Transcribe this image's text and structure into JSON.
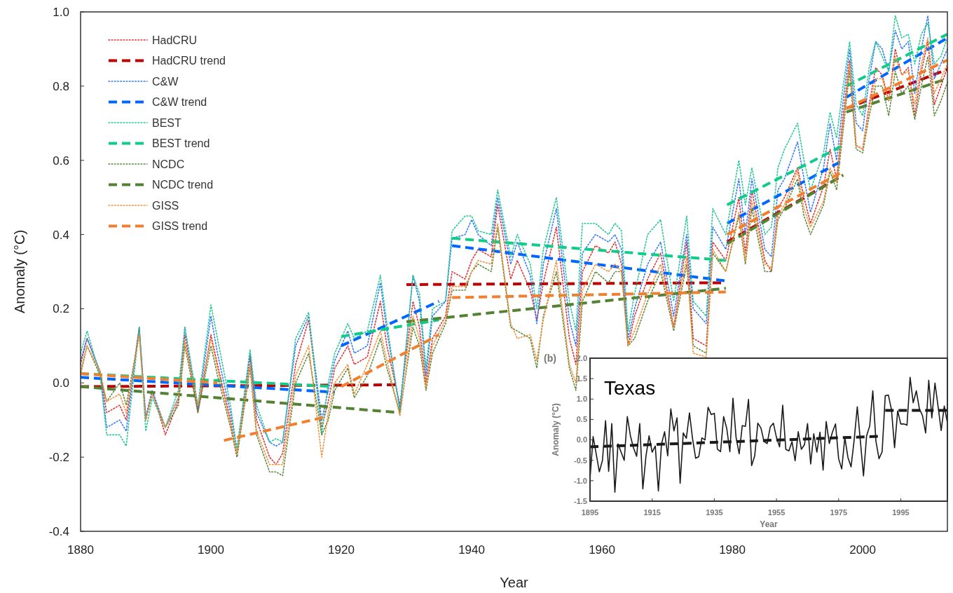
{
  "chart_data": [
    {
      "type": "line",
      "xlabel": "Year",
      "ylabel": "Anomaly (°C)",
      "xlim": [
        1880,
        2013
      ],
      "ylim": [
        -0.4,
        1.0
      ],
      "xticks": [
        1880,
        1900,
        1920,
        1940,
        1960,
        1980,
        2000
      ],
      "yticks": [
        -0.4,
        -0.2,
        {
          "value": 0,
          "label": "0.0"
        },
        0.2,
        0.4,
        0.6,
        0.8,
        {
          "value": 1,
          "label": "1.0"
        }
      ],
      "legend": "top left",
      "x": [
        1880,
        1881,
        1883,
        1884,
        1886,
        1887,
        1889,
        1890,
        1891,
        1893,
        1895,
        1896,
        1898,
        1900,
        1901,
        1903,
        1904,
        1906,
        1907,
        1909,
        1910,
        1911,
        1913,
        1915,
        1917,
        1918,
        1919,
        1921,
        1922,
        1924,
        1926,
        1927,
        1929,
        1931,
        1932,
        1933,
        1934,
        1936,
        1937,
        1939,
        1940,
        1941,
        1943,
        1944,
        1946,
        1947,
        1949,
        1950,
        1951,
        1953,
        1955,
        1956,
        1957,
        1959,
        1961,
        1962,
        1963,
        1964,
        1965,
        1967,
        1969,
        1971,
        1973,
        1974,
        1976,
        1977,
        1979,
        1981,
        1982,
        1983,
        1985,
        1986,
        1987,
        1988,
        1990,
        1991,
        1992,
        1994,
        1995,
        1996,
        1997,
        1998,
        1999,
        2000,
        2001,
        2002,
        2003,
        2004,
        2005,
        2006,
        2007,
        2008,
        2009,
        2010,
        2011,
        2012,
        2013
      ],
      "series": [
        {
          "name": "HadCRU",
          "color": "#e03030",
          "line_style": "dotted",
          "values": [
            0.05,
            0.12,
            0.03,
            -0.08,
            -0.06,
            -0.1,
            0.15,
            -0.1,
            -0.02,
            -0.14,
            -0.05,
            0.13,
            -0.08,
            0.13,
            0.05,
            -0.1,
            -0.2,
            0.07,
            -0.1,
            -0.2,
            -0.22,
            -0.19,
            0.05,
            0.17,
            -0.12,
            -0.05,
            0.04,
            0.1,
            0.05,
            0.07,
            0.22,
            0.1,
            -0.06,
            0.22,
            0.15,
            0.0,
            0.12,
            0.18,
            0.3,
            0.28,
            0.33,
            0.36,
            0.34,
            0.48,
            0.28,
            0.33,
            0.25,
            0.17,
            0.27,
            0.42,
            0.12,
            0.05,
            0.3,
            0.37,
            0.35,
            0.38,
            0.32,
            0.1,
            0.18,
            0.28,
            0.35,
            0.15,
            0.38,
            0.12,
            0.1,
            0.38,
            0.33,
            0.5,
            0.35,
            0.52,
            0.33,
            0.3,
            0.47,
            0.5,
            0.58,
            0.5,
            0.43,
            0.53,
            0.63,
            0.55,
            0.72,
            0.87,
            0.64,
            0.63,
            0.75,
            0.85,
            0.83,
            0.76,
            0.9,
            0.83,
            0.85,
            0.72,
            0.84,
            0.92,
            0.75,
            0.8,
            0.85
          ]
        },
        {
          "name": "HadCRU trend",
          "color": "#c00000",
          "line_style": "dashed",
          "x": [
            1880,
            1929,
            1929.5,
            1930,
            1979,
            1979.1,
            1979.2,
            1997,
            1997.3,
            1997.5,
            2013
          ],
          "values": [
            -0.01,
            -0.005,
            null,
            0.265,
            0.27,
            null,
            0.38,
            0.56,
            null,
            0.74,
            0.845
          ]
        },
        {
          "name": "C&W",
          "color": "#3377ff",
          "line_style": "dotted",
          "values": [
            0.06,
            0.12,
            0.03,
            -0.12,
            -0.1,
            -0.13,
            0.15,
            -0.09,
            -0.02,
            -0.12,
            -0.04,
            0.15,
            -0.07,
            0.18,
            0.08,
            -0.08,
            -0.18,
            0.08,
            -0.08,
            -0.16,
            -0.17,
            -0.16,
            0.1,
            0.18,
            -0.1,
            -0.02,
            0.06,
            0.14,
            0.08,
            0.1,
            0.27,
            0.14,
            -0.07,
            0.29,
            0.22,
            0.02,
            0.18,
            0.22,
            0.39,
            0.4,
            0.44,
            0.4,
            0.37,
            0.5,
            0.32,
            0.38,
            0.29,
            0.16,
            0.32,
            0.47,
            0.17,
            0.1,
            0.35,
            0.4,
            0.38,
            0.4,
            0.36,
            0.12,
            0.2,
            0.32,
            0.38,
            0.18,
            0.4,
            0.2,
            0.16,
            0.42,
            0.36,
            0.55,
            0.4,
            0.55,
            0.36,
            0.34,
            0.52,
            0.55,
            0.65,
            0.55,
            0.46,
            0.58,
            0.7,
            0.6,
            0.76,
            0.9,
            0.7,
            0.68,
            0.82,
            0.92,
            0.9,
            0.84,
            0.95,
            0.9,
            0.92,
            0.78,
            0.9,
            0.99,
            0.82,
            0.86,
            0.9
          ]
        },
        {
          "name": "C&W trend",
          "color": "#0066ff",
          "line_style": "dashed",
          "x": [
            1880,
            1919,
            1919.5,
            1920,
            1935,
            1936,
            1937,
            1979,
            1979.1,
            1979.2,
            1997,
            1997.3,
            1997.5,
            2013
          ],
          "values": [
            0.015,
            -0.025,
            null,
            0.1,
            0.22,
            null,
            0.37,
            0.275,
            null,
            0.43,
            0.6,
            null,
            0.77,
            0.93
          ]
        },
        {
          "name": "BEST",
          "color": "#22c995",
          "line_style": "dotted",
          "values": [
            0.08,
            0.14,
            0.02,
            -0.14,
            -0.14,
            -0.17,
            0.15,
            -0.13,
            -0.04,
            -0.12,
            -0.02,
            0.15,
            -0.06,
            0.21,
            0.12,
            -0.06,
            -0.18,
            0.09,
            -0.06,
            -0.16,
            -0.15,
            -0.16,
            0.12,
            0.19,
            -0.14,
            0.0,
            0.08,
            0.16,
            0.12,
            0.14,
            0.29,
            0.16,
            -0.08,
            0.29,
            0.24,
            0.04,
            0.2,
            0.22,
            0.41,
            0.45,
            0.45,
            0.41,
            0.4,
            0.52,
            0.34,
            0.4,
            0.32,
            0.2,
            0.36,
            0.5,
            0.22,
            0.14,
            0.43,
            0.43,
            0.4,
            0.43,
            0.41,
            0.14,
            0.24,
            0.4,
            0.44,
            0.22,
            0.45,
            0.22,
            0.18,
            0.47,
            0.4,
            0.6,
            0.48,
            0.58,
            0.4,
            0.42,
            0.58,
            0.63,
            0.7,
            0.6,
            0.52,
            0.62,
            0.73,
            0.66,
            0.8,
            0.92,
            0.75,
            0.72,
            0.85,
            0.92,
            0.88,
            0.84,
            0.99,
            0.93,
            0.94,
            0.86,
            0.94,
            0.97,
            0.86,
            0.88,
            0.93
          ]
        },
        {
          "name": "BEST trend",
          "color": "#11cc88",
          "line_style": "dashed",
          "x": [
            1880,
            1919,
            1919.5,
            1920,
            1935,
            1936,
            1937,
            1979,
            1979.1,
            1979.2,
            1997,
            1997.3,
            1997.5,
            2013
          ],
          "values": [
            0.025,
            -0.01,
            null,
            0.125,
            0.17,
            null,
            0.39,
            0.33,
            null,
            0.48,
            0.64,
            null,
            0.8,
            0.94
          ]
        },
        {
          "name": "NCDC",
          "color": "#5a8a3a",
          "line_style": "dotted",
          "values": [
            0.03,
            0.1,
            0.02,
            -0.05,
            0.0,
            -0.06,
            0.13,
            -0.1,
            -0.03,
            -0.12,
            -0.06,
            0.1,
            -0.08,
            0.1,
            0.02,
            -0.12,
            -0.2,
            0.04,
            -0.14,
            -0.24,
            -0.24,
            -0.25,
            0.0,
            0.08,
            -0.14,
            -0.1,
            -0.02,
            0.04,
            -0.04,
            0.02,
            0.12,
            0.04,
            -0.08,
            0.15,
            0.1,
            -0.02,
            0.08,
            0.16,
            0.25,
            0.25,
            0.3,
            0.32,
            0.3,
            0.42,
            0.15,
            0.14,
            0.12,
            0.04,
            0.18,
            0.3,
            0.04,
            -0.02,
            0.22,
            0.3,
            0.27,
            0.3,
            0.3,
            0.1,
            0.12,
            0.22,
            0.3,
            0.14,
            0.32,
            0.1,
            0.08,
            0.35,
            0.3,
            0.45,
            0.32,
            0.47,
            0.3,
            0.3,
            0.44,
            0.47,
            0.55,
            0.45,
            0.4,
            0.48,
            0.57,
            0.52,
            0.68,
            0.84,
            0.63,
            0.62,
            0.72,
            0.8,
            0.8,
            0.72,
            0.84,
            0.78,
            0.8,
            0.71,
            0.8,
            0.88,
            0.72,
            0.76,
            0.81
          ]
        },
        {
          "name": "NCDC trend",
          "color": "#548235",
          "line_style": "dashed",
          "x": [
            1880,
            1929,
            1929.5,
            1930,
            1979,
            1979.1,
            1979.2,
            1997,
            1997.3,
            1997.5,
            2013
          ],
          "values": [
            -0.01,
            -0.08,
            null,
            0.165,
            0.255,
            null,
            0.375,
            0.56,
            null,
            0.73,
            0.82
          ]
        },
        {
          "name": "GISS",
          "color": "#f4903a",
          "line_style": "dotted",
          "values": [
            0.02,
            0.1,
            0.03,
            -0.05,
            -0.03,
            -0.08,
            0.13,
            -0.1,
            -0.03,
            -0.12,
            -0.04,
            0.11,
            -0.06,
            0.12,
            0.04,
            -0.11,
            -0.19,
            0.05,
            -0.13,
            -0.22,
            -0.22,
            -0.22,
            0.02,
            0.1,
            -0.2,
            -0.08,
            0.0,
            0.05,
            -0.03,
            0.05,
            0.14,
            0.06,
            -0.09,
            0.18,
            0.12,
            -0.01,
            0.1,
            0.17,
            0.26,
            0.26,
            0.3,
            0.33,
            0.32,
            0.43,
            0.16,
            0.12,
            0.13,
            0.06,
            0.17,
            0.33,
            0.05,
            0.0,
            0.25,
            0.32,
            0.3,
            0.32,
            0.3,
            0.1,
            0.14,
            0.24,
            0.32,
            0.15,
            0.34,
            0.08,
            0.07,
            0.36,
            0.3,
            0.46,
            0.33,
            0.49,
            0.32,
            0.31,
            0.45,
            0.48,
            0.57,
            0.47,
            0.42,
            0.49,
            0.58,
            0.54,
            0.7,
            0.86,
            0.64,
            0.63,
            0.74,
            0.82,
            0.82,
            0.76,
            0.88,
            0.83,
            0.84,
            0.75,
            0.86,
            0.93,
            0.78,
            0.82,
            0.86
          ]
        },
        {
          "name": "GISS trend",
          "color": "#f08030",
          "line_style": "dashed",
          "x": [
            1880,
            1901,
            1901.5,
            1902,
            1918,
            1919,
            1920,
            1935,
            1936,
            1937,
            1979,
            1979.1,
            1979.2,
            1997,
            1997.3,
            1997.5,
            2013
          ],
          "values": [
            0.025,
            0.0,
            null,
            -0.155,
            -0.09,
            null,
            -0.01,
            0.13,
            null,
            0.23,
            0.245,
            null,
            0.4,
            0.57,
            null,
            0.74,
            0.87
          ]
        }
      ]
    },
    {
      "type": "line",
      "title": "Texas",
      "xlabel": "Year",
      "ylabel": "Anomaly (°C)",
      "annotations": [
        "(b)"
      ],
      "xlim": [
        1895,
        2010
      ],
      "ylim": [
        -1.5,
        2.0
      ],
      "xticks": [
        1895,
        1915,
        1935,
        1955,
        1975,
        1995
      ],
      "yticks": [
        -1.5,
        {
          "value": -1,
          "label": "-1.0"
        },
        -0.5,
        {
          "value": 0,
          "label": "0.0"
        },
        0.5,
        {
          "value": 1,
          "label": "1.0"
        },
        1.5,
        {
          "value": 2,
          "label": "2.0"
        }
      ],
      "x": [
        1895,
        1896,
        1897,
        1898,
        1899,
        1900,
        1901,
        1902,
        1903,
        1904,
        1905,
        1906,
        1907,
        1908,
        1909,
        1910,
        1911,
        1912,
        1913,
        1914,
        1915,
        1916,
        1917,
        1918,
        1919,
        1920,
        1921,
        1922,
        1923,
        1924,
        1925,
        1926,
        1927,
        1928,
        1929,
        1930,
        1931,
        1932,
        1933,
        1934,
        1935,
        1936,
        1937,
        1938,
        1939,
        1940,
        1941,
        1942,
        1943,
        1944,
        1945,
        1946,
        1947,
        1948,
        1949,
        1950,
        1951,
        1952,
        1953,
        1954,
        1955,
        1956,
        1957,
        1958,
        1959,
        1960,
        1961,
        1962,
        1963,
        1964,
        1965,
        1966,
        1967,
        1968,
        1969,
        1970,
        1971,
        1972,
        1973,
        1974,
        1975,
        1976,
        1977,
        1978,
        1979,
        1980,
        1981,
        1982,
        1983,
        1984,
        1985,
        1986,
        1987,
        1988,
        1989,
        1990,
        1991,
        1992,
        1993,
        1994,
        1995,
        1996,
        1997,
        1998,
        1999,
        2000,
        2001,
        2002,
        2003,
        2004,
        2005,
        2006,
        2007,
        2008,
        2009,
        2010
      ],
      "series": [
        {
          "color": "#1a1a1a",
          "line_style": "solid",
          "values": [
            -0.95,
            0.08,
            -0.35,
            -0.78,
            -0.5,
            0.47,
            -0.77,
            0.4,
            -1.28,
            -0.1,
            -0.3,
            -0.5,
            0.57,
            0.1,
            -0.2,
            -0.4,
            0.4,
            -1.2,
            -0.4,
            0.1,
            -0.3,
            -0.15,
            -1.25,
            -0.1,
            0.2,
            -0.39,
            0.76,
            0.22,
            0.54,
            -1.06,
            0.17,
            0.04,
            0.66,
            0.03,
            -0.45,
            -0.41,
            0.05,
            0.0,
            0.8,
            0.62,
            0.65,
            -0.23,
            -0.29,
            0.57,
            0.28,
            -0.29,
            1.02,
            0.06,
            -0.34,
            0.35,
            0.33,
            0.99,
            -0.63,
            -0.39,
            0.41,
            0.29,
            -0.04,
            -0.09,
            0.32,
            0.41,
            0.06,
            -0.17,
            0.85,
            -0.23,
            -0.27,
            -0.04,
            -0.51,
            0.2,
            -0.23,
            -0.12,
            0.4,
            -0.59,
            0.15,
            -0.3,
            0.19,
            -0.74,
            0.45,
            -0.09,
            0.19,
            0.39,
            -0.46,
            -0.71,
            0.06,
            -0.43,
            -0.66,
            0.0,
            0.81,
            -0.03,
            -0.88,
            0.1,
            0.34,
            1.2,
            -0.03,
            -0.46,
            -0.29,
            1.08,
            1.1,
            0.74,
            -0.19,
            0.71,
            0.39,
            0.39,
            0.36,
            1.53,
            0.91,
            1.2,
            0.76,
            0.59,
            0.17,
            1.46,
            0.54,
            1.39,
            0.82,
            0.23,
            0.83,
            0.41
          ]
        },
        {
          "color": "#1a1a1a",
          "line_style": "dashed",
          "x": [
            1895,
            1989,
            1989.5,
            1990,
            2010
          ],
          "values": [
            -0.17,
            0.09,
            null,
            0.72,
            0.72
          ]
        }
      ]
    }
  ]
}
